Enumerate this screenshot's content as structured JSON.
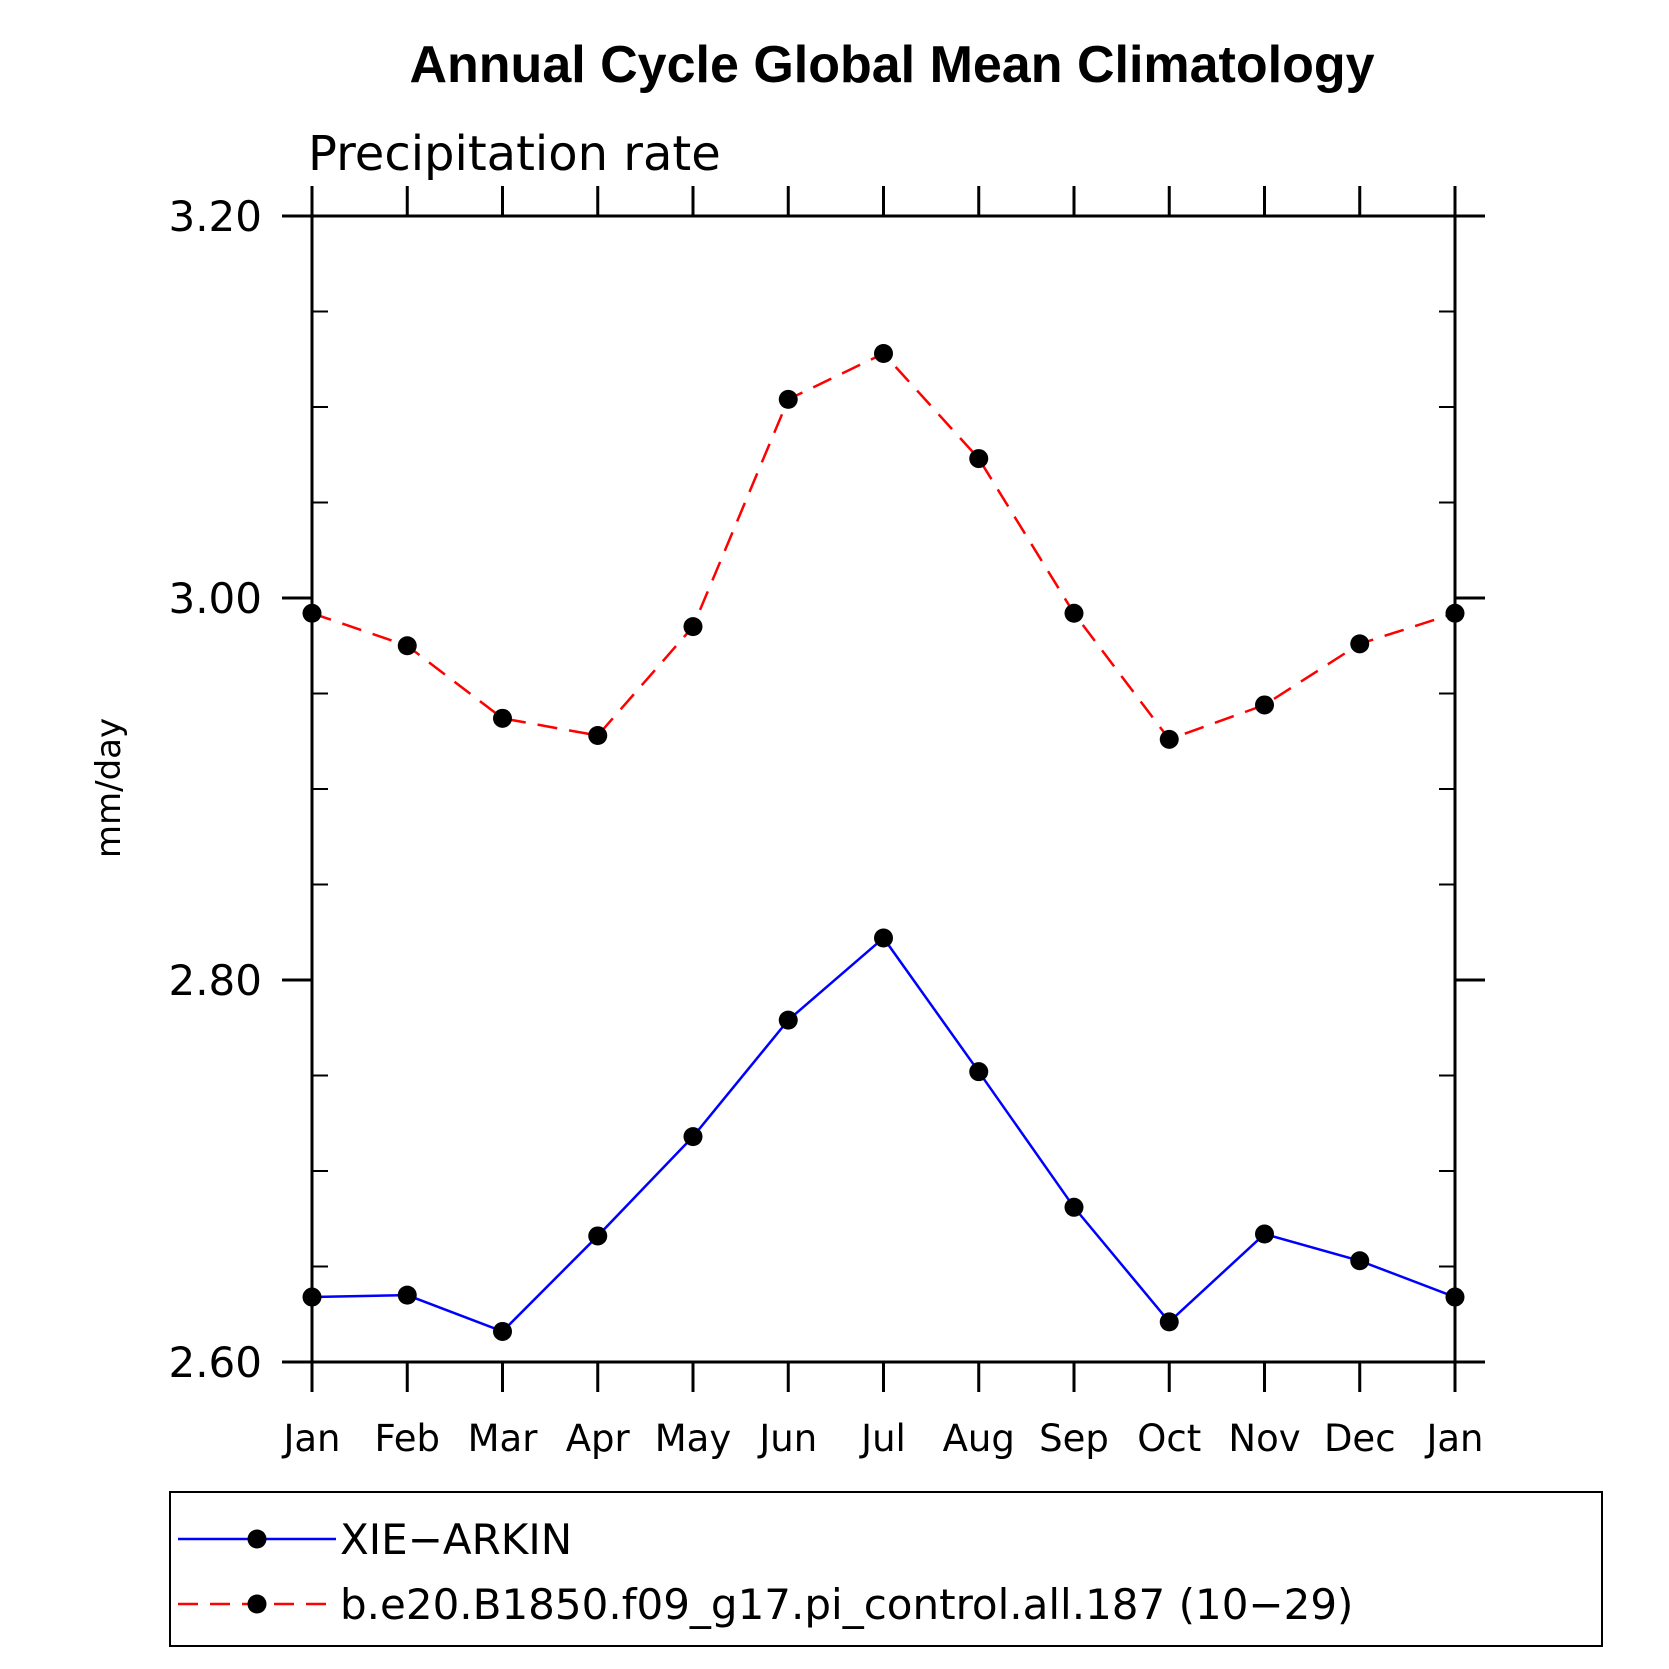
{
  "chart_data": {
    "type": "line",
    "title": "Annual Cycle Global Mean Climatology",
    "subtitle": "Precipitation rate",
    "xlabel": "",
    "ylabel": "mm/day",
    "categories": [
      "Jan",
      "Feb",
      "Mar",
      "Apr",
      "May",
      "Jun",
      "Jul",
      "Aug",
      "Sep",
      "Oct",
      "Nov",
      "Dec",
      "Jan"
    ],
    "ylim": [
      2.6,
      3.2
    ],
    "yticks": [
      "2.60",
      "2.80",
      "3.00",
      "3.20"
    ],
    "grid": false,
    "legend_position": "bottom",
    "series": [
      {
        "name": "XIE−ARKIN",
        "color": "#0000ff",
        "line_style": "solid",
        "marker": "filled-circle",
        "values": [
          2.634,
          2.635,
          2.616,
          2.666,
          2.718,
          2.779,
          2.822,
          2.752,
          2.681,
          2.621,
          2.667,
          2.653,
          2.634
        ]
      },
      {
        "name": "b.e20.B1850.f09_g17.pi_control.all.187 (10−29)",
        "color": "#ff0000",
        "line_style": "dashed",
        "marker": "filled-circle",
        "values": [
          2.992,
          2.975,
          2.937,
          2.928,
          2.985,
          3.104,
          3.128,
          3.073,
          2.992,
          2.926,
          2.944,
          2.976,
          2.992
        ]
      }
    ]
  }
}
